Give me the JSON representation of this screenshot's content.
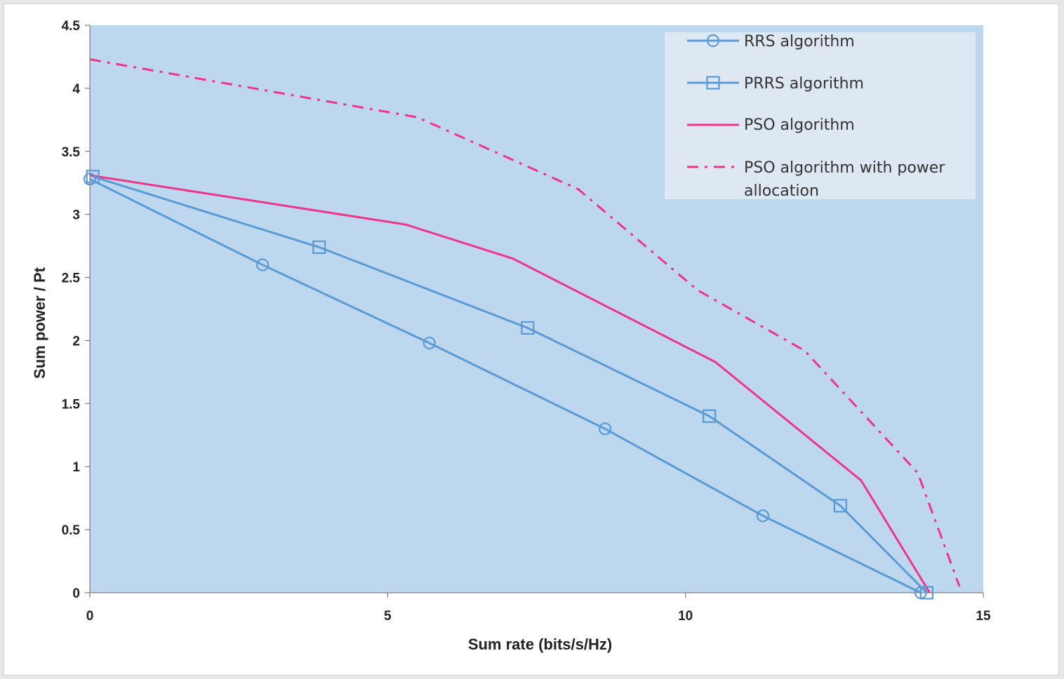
{
  "colors": {
    "background": "#e6e6e6",
    "plot_area": "#bdd7ee",
    "legend_bg": "#dde8f3",
    "blue_series": "#5b9bd5",
    "pink_series": "#f0348a",
    "axis": "#666666"
  },
  "chart_data": {
    "type": "line",
    "title": "",
    "xlabel": "Sum rate (bits/s/Hz)",
    "ylabel": "Sum power / Pt",
    "xlim": [
      0,
      15
    ],
    "ylim": [
      0,
      4.5
    ],
    "x_ticks": [
      "0",
      "5",
      "10",
      "15"
    ],
    "y_ticks": [
      "0",
      "0.5",
      "1",
      "1.5",
      "2",
      "2.5",
      "3",
      "3.5",
      "4",
      "4.5"
    ],
    "grid": false,
    "legend_position": "top-right",
    "series": [
      {
        "name": "RRS algorithm",
        "color": "#5b9bd5",
        "line_style": "solid",
        "marker": "circle",
        "x": [
          0.0,
          2.9,
          5.7,
          8.65,
          11.3,
          13.95
        ],
        "y": [
          3.28,
          2.6,
          1.98,
          1.3,
          0.61,
          0.0
        ]
      },
      {
        "name": "PRRS algorithm",
        "color": "#5b9bd5",
        "line_style": "solid",
        "marker": "square",
        "x": [
          0.05,
          3.85,
          7.35,
          10.4,
          12.6,
          14.05
        ],
        "y": [
          3.3,
          2.74,
          2.1,
          1.4,
          0.69,
          0.0
        ]
      },
      {
        "name": "PSO algorithm",
        "color": "#f0348a",
        "line_style": "solid",
        "marker": "none",
        "x": [
          0.0,
          5.3,
          7.1,
          10.5,
          12.95,
          14.1
        ],
        "y": [
          3.31,
          2.92,
          2.65,
          1.83,
          0.89,
          0.0
        ]
      },
      {
        "name": "PSO algorithm with power allocation",
        "color": "#f0348a",
        "line_style": "dashdot",
        "marker": "none",
        "x": [
          0.0,
          5.5,
          8.2,
          10.2,
          12.0,
          13.9,
          14.6
        ],
        "y": [
          4.23,
          3.77,
          3.2,
          2.4,
          1.92,
          0.95,
          0.05
        ]
      }
    ]
  },
  "legend": {
    "entries": [
      {
        "label": "RRS algorithm"
      },
      {
        "label": "PRRS algorithm"
      },
      {
        "label": "PSO algorithm"
      },
      {
        "label_line1": "PSO algorithm with power",
        "label_line2": "allocation"
      }
    ]
  }
}
